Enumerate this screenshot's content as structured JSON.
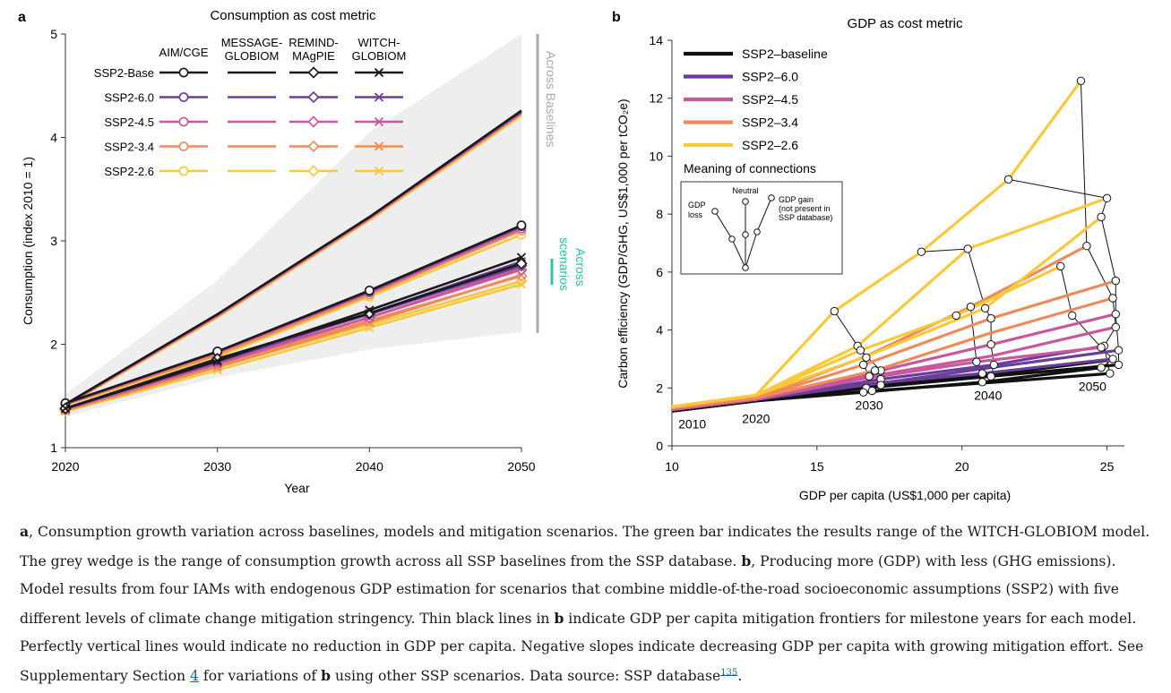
{
  "chart_data": [
    {
      "panel": "a",
      "type": "line",
      "title": "Consumption as cost metric",
      "xlabel": "Year",
      "ylabel": "Consumption (index 2010 = 1)",
      "xlim": [
        2020,
        2050
      ],
      "ylim": [
        1,
        5
      ],
      "xticks": [
        2020,
        2030,
        2040,
        2050
      ],
      "yticks": [
        1,
        2,
        3,
        4,
        5
      ],
      "x": [
        2020,
        2030,
        2040,
        2050
      ],
      "legend_placement": "top-left",
      "legend_models": [
        "AIM/CGE",
        "MESSAGE-GLOBIOM",
        "REMIND-MAgPIE",
        "WITCH-GLOBIOM"
      ],
      "legend_models_display": [
        [
          "AIM/CGE"
        ],
        [
          "MESSAGE-",
          "GLOBIOM"
        ],
        [
          "REMIND-",
          "MAgPIE"
        ],
        [
          "WITCH-",
          "GLOBIOM"
        ]
      ],
      "legend_scenarios": [
        "SSP2-Base",
        "SSP2-6.0",
        "SSP2-4.5",
        "SSP2-3.4",
        "SSP2-2.6"
      ],
      "annotations": {
        "across_baselines": "Across Baselines",
        "across_scenarios": [
          "Across",
          "scenarios"
        ]
      },
      "wedge": {
        "label": "Across Baselines",
        "upper": [
          1.52,
          2.62,
          4.05,
          5.0
        ],
        "lower": [
          1.3,
          1.68,
          1.95,
          2.12
        ]
      },
      "scenario_colors": {
        "SSP2-Base": "#1a1a1a",
        "SSP2-6.0": "#6a3d9a",
        "SSP2-4.5": "#c8579d",
        "SSP2-3.4": "#ef8a5b",
        "SSP2-2.6": "#f9c93a"
      },
      "series": [
        {
          "model": "AIM/CGE",
          "scenario": "SSP2-Base",
          "values": [
            1.43,
            1.93,
            2.52,
            3.15
          ]
        },
        {
          "model": "AIM/CGE",
          "scenario": "SSP2-6.0",
          "values": [
            1.43,
            1.93,
            2.51,
            3.14
          ]
        },
        {
          "model": "AIM/CGE",
          "scenario": "SSP2-4.5",
          "values": [
            1.42,
            1.92,
            2.5,
            3.12
          ]
        },
        {
          "model": "AIM/CGE",
          "scenario": "SSP2-3.4",
          "values": [
            1.42,
            1.9,
            2.48,
            3.1
          ]
        },
        {
          "model": "AIM/CGE",
          "scenario": "SSP2-2.6",
          "values": [
            1.41,
            1.88,
            2.46,
            3.06
          ]
        },
        {
          "model": "MESSAGE-GLOBIOM",
          "scenario": "SSP2-Base",
          "values": [
            1.42,
            2.29,
            3.23,
            4.26
          ]
        },
        {
          "model": "MESSAGE-GLOBIOM",
          "scenario": "SSP2-6.0",
          "values": [
            1.42,
            2.29,
            3.23,
            4.25
          ]
        },
        {
          "model": "MESSAGE-GLOBIOM",
          "scenario": "SSP2-4.5",
          "values": [
            1.41,
            2.28,
            3.22,
            4.24
          ]
        },
        {
          "model": "MESSAGE-GLOBIOM",
          "scenario": "SSP2-3.4",
          "values": [
            1.41,
            2.27,
            3.21,
            4.23
          ]
        },
        {
          "model": "MESSAGE-GLOBIOM",
          "scenario": "SSP2-2.6",
          "values": [
            1.4,
            2.26,
            3.2,
            4.21
          ]
        },
        {
          "model": "REMIND-MAgPIE",
          "scenario": "SSP2-Base",
          "values": [
            1.38,
            1.86,
            2.3,
            2.78
          ]
        },
        {
          "model": "REMIND-MAgPIE",
          "scenario": "SSP2-6.0",
          "values": [
            1.38,
            1.85,
            2.29,
            2.76
          ]
        },
        {
          "model": "REMIND-MAgPIE",
          "scenario": "SSP2-4.5",
          "values": [
            1.37,
            1.83,
            2.26,
            2.72
          ]
        },
        {
          "model": "REMIND-MAgPIE",
          "scenario": "SSP2-3.4",
          "values": [
            1.37,
            1.8,
            2.23,
            2.66
          ]
        },
        {
          "model": "REMIND-MAgPIE",
          "scenario": "SSP2-2.6",
          "values": [
            1.36,
            1.78,
            2.19,
            2.61
          ]
        },
        {
          "model": "WITCH-GLOBIOM",
          "scenario": "SSP2-Base",
          "values": [
            1.38,
            1.84,
            2.33,
            2.84
          ]
        },
        {
          "model": "WITCH-GLOBIOM",
          "scenario": "SSP2-6.0",
          "values": [
            1.38,
            1.83,
            2.3,
            2.8
          ]
        },
        {
          "model": "WITCH-GLOBIOM",
          "scenario": "SSP2-4.5",
          "values": [
            1.37,
            1.81,
            2.26,
            2.74
          ]
        },
        {
          "model": "WITCH-GLOBIOM",
          "scenario": "SSP2-3.4",
          "values": [
            1.36,
            1.78,
            2.21,
            2.67
          ]
        },
        {
          "model": "WITCH-GLOBIOM",
          "scenario": "SSP2-2.6",
          "values": [
            1.35,
            1.75,
            2.16,
            2.58
          ]
        }
      ]
    },
    {
      "panel": "b",
      "type": "line",
      "title": "GDP as cost metric",
      "xlabel": "GDP per capita (US$1,000 per capita)",
      "ylabel": "Carbon efficiency (GDP/GHG, US$1,000 per tCO₂e)",
      "xlim": [
        10,
        25.6
      ],
      "ylim": [
        0,
        14
      ],
      "xticks": [
        10,
        15,
        20,
        25
      ],
      "yticks": [
        0,
        2,
        4,
        6,
        8,
        10,
        12,
        14
      ],
      "legend_placement": "top-left",
      "legend": [
        "SSP2–baseline",
        "SSP2–6.0",
        "SSP2–4.5",
        "SSP2–3.4",
        "SSP2–2.6"
      ],
      "legend_colors": [
        "#111111",
        "#6a3d9a",
        "#c8579d",
        "#ef8a5b",
        "#f9c93a"
      ],
      "year_labels": [
        {
          "text": "2010",
          "x": 10.7,
          "y": 0.75
        },
        {
          "text": "2020",
          "x": 12.9,
          "y": 0.95
        },
        {
          "text": "2030",
          "x": 16.8,
          "y": 1.4
        },
        {
          "text": "2040",
          "x": 20.9,
          "y": 1.75
        },
        {
          "text": "2050",
          "x": 24.5,
          "y": 2.05
        }
      ],
      "inset": {
        "title": "Meaning of connections",
        "labels": {
          "loss": [
            "GDP",
            "loss"
          ],
          "neutral": "Neutral",
          "gain": [
            "GDP gain",
            "(not present in",
            "SSP database)"
          ]
        }
      },
      "series": [
        {
          "scenario": "SSP2–baseline",
          "x": [
            10,
            12.9,
            16.7,
            21.0,
            25.4
          ],
          "y": [
            1.2,
            1.55,
            2.0,
            2.4,
            2.8
          ]
        },
        {
          "scenario": "SSP2–baseline",
          "x": [
            10,
            12.9,
            16.9,
            21.2,
            25.1
          ],
          "y": [
            1.2,
            1.55,
            1.9,
            2.2,
            2.5
          ]
        },
        {
          "scenario": "SSP2–baseline",
          "x": [
            10,
            12.9,
            17.2,
            21.0,
            25.0
          ],
          "y": [
            1.2,
            1.55,
            2.1,
            2.45,
            2.95
          ]
        },
        {
          "scenario": "SSP2–baseline",
          "x": [
            10,
            12.9,
            16.6,
            20.7,
            24.8
          ],
          "y": [
            1.2,
            1.55,
            1.85,
            2.2,
            2.7
          ]
        },
        {
          "scenario": "SSP2–6.0",
          "x": [
            10,
            12.9,
            16.7,
            21.0,
            25.4
          ],
          "y": [
            1.25,
            1.6,
            2.1,
            2.7,
            3.3
          ]
        },
        {
          "scenario": "SSP2–6.0",
          "x": [
            10,
            12.9,
            17.2,
            21.1,
            24.9
          ],
          "y": [
            1.25,
            1.6,
            2.3,
            2.8,
            3.45
          ]
        },
        {
          "scenario": "SSP2–6.0",
          "x": [
            10,
            12.9,
            16.9,
            20.7,
            25.2
          ],
          "y": [
            1.25,
            1.6,
            2.15,
            2.5,
            3.0
          ]
        },
        {
          "scenario": "SSP2–4.5",
          "x": [
            10,
            12.9,
            16.8,
            21.0,
            25.3
          ],
          "y": [
            1.25,
            1.6,
            2.4,
            3.1,
            4.1
          ]
        },
        {
          "scenario": "SSP2–4.5",
          "x": [
            10,
            12.9,
            17.2,
            21.0,
            25.3
          ],
          "y": [
            1.25,
            1.6,
            2.6,
            3.5,
            4.55
          ]
        },
        {
          "scenario": "SSP2–4.5",
          "x": [
            10,
            12.9,
            16.5,
            20.5,
            24.8
          ],
          "y": [
            1.25,
            1.6,
            2.3,
            2.9,
            3.4
          ]
        },
        {
          "scenario": "SSP2–3.4",
          "x": [
            10,
            12.9,
            16.6,
            21.0,
            25.3
          ],
          "y": [
            1.3,
            1.65,
            2.8,
            4.4,
            5.7
          ]
        },
        {
          "scenario": "SSP2–3.4",
          "x": [
            10,
            12.9,
            17.0,
            21.0,
            25.2
          ],
          "y": [
            1.3,
            1.65,
            2.6,
            3.9,
            5.1
          ]
        },
        {
          "scenario": "SSP2–3.4",
          "x": [
            10,
            12.9,
            16.7,
            20.3,
            24.3
          ],
          "y": [
            1.3,
            1.65,
            3.1,
            4.8,
            6.9
          ]
        },
        {
          "scenario": "SSP2–2.6",
          "x": [
            10,
            12.9,
            15.6,
            18.6,
            21.6,
            24.1
          ],
          "y": [
            1.35,
            1.75,
            4.65,
            6.7,
            9.2,
            12.6
          ]
        },
        {
          "scenario": "SSP2–2.6",
          "x": [
            10,
            12.9,
            16.4,
            20.2,
            25.0
          ],
          "y": [
            1.35,
            1.75,
            3.45,
            6.8,
            8.55
          ]
        },
        {
          "scenario": "SSP2–2.6",
          "x": [
            10,
            12.9,
            16.6,
            20.8,
            24.8
          ],
          "y": [
            1.35,
            1.75,
            3.05,
            4.75,
            7.9
          ]
        },
        {
          "scenario": "SSP2–2.6",
          "x": [
            10,
            12.9,
            16.5,
            19.8,
            23.4
          ],
          "y": [
            1.35,
            1.75,
            3.3,
            4.5,
            6.2
          ]
        }
      ],
      "frontiers": [
        {
          "year": 2030,
          "points": [
            [
              15.6,
              4.65
            ],
            [
              16.4,
              3.45
            ],
            [
              16.7,
              3.05
            ],
            [
              16.6,
              2.8
            ],
            [
              16.8,
              2.4
            ],
            [
              16.7,
              2.0
            ],
            [
              16.6,
              1.85
            ]
          ]
        },
        {
          "year": 2030,
          "points": [
            [
              16.5,
              3.3
            ],
            [
              17.2,
              2.6
            ],
            [
              17.0,
              2.6
            ],
            [
              17.2,
              2.3
            ],
            [
              17.2,
              2.1
            ],
            [
              16.9,
              1.9
            ]
          ]
        },
        {
          "year": 2040,
          "points": [
            [
              18.6,
              6.7
            ],
            [
              20.2,
              6.8
            ],
            [
              20.8,
              4.75
            ],
            [
              21.0,
              4.4
            ],
            [
              21.0,
              3.5
            ],
            [
              21.1,
              2.8
            ],
            [
              21.0,
              2.4
            ]
          ]
        },
        {
          "year": 2040,
          "points": [
            [
              19.8,
              4.5
            ],
            [
              20.3,
              4.8
            ],
            [
              20.5,
              2.9
            ],
            [
              20.7,
              2.5
            ],
            [
              20.7,
              2.2
            ]
          ]
        },
        {
          "year": 2050,
          "points": [
            [
              21.6,
              9.2
            ],
            [
              25.0,
              8.55
            ],
            [
              24.8,
              7.9
            ],
            [
              25.3,
              5.7
            ],
            [
              25.3,
              4.55
            ],
            [
              25.4,
              3.3
            ],
            [
              25.4,
              2.8
            ]
          ]
        },
        {
          "year": 2050,
          "points": [
            [
              24.1,
              12.6
            ],
            [
              24.3,
              6.9
            ],
            [
              25.2,
              5.1
            ],
            [
              25.3,
              4.1
            ],
            [
              24.9,
              3.45
            ],
            [
              25.1,
              2.5
            ]
          ]
        },
        {
          "year": 2050,
          "points": [
            [
              23.4,
              6.2
            ],
            [
              23.8,
              4.5
            ],
            [
              24.8,
              3.4
            ],
            [
              25.2,
              3.0
            ],
            [
              24.8,
              2.7
            ]
          ]
        }
      ]
    }
  ],
  "panel_labels": {
    "a": "a",
    "b": "b"
  },
  "caption": {
    "a_label": "a",
    "a_text": ", Consumption growth variation across baselines, models and mitigation scenarios. The green bar indicates the results range of the WITCH-GLOBIOM model. The grey wedge is the range of consumption growth across all SSP baselines from the SSP database. ",
    "b_label": "b",
    "b_text1": ", Producing more (GDP) with less (GHG emissions). Model results from four IAMs with endogenous GDP estimation for scenarios that combine middle-of-the-road socioeconomic assumptions (SSP2) with five different levels of climate change mitigation stringency. Thin black lines in ",
    "b_label2": "b",
    "b_text2": " indicate GDP per capita mitigation frontiers for milestone years for each model. Perfectly vertical lines would indicate no reduction in GDP per capita. Negative slopes indicate decreasing GDP per capita with growing mitigation effort. See Supplementary Section ",
    "section_link": "4",
    "b_text3": " for variations of ",
    "b_label3": "b",
    "b_text4": " using other SSP scenarios. Data source: SSP database",
    "ref": "135",
    "end": "."
  }
}
